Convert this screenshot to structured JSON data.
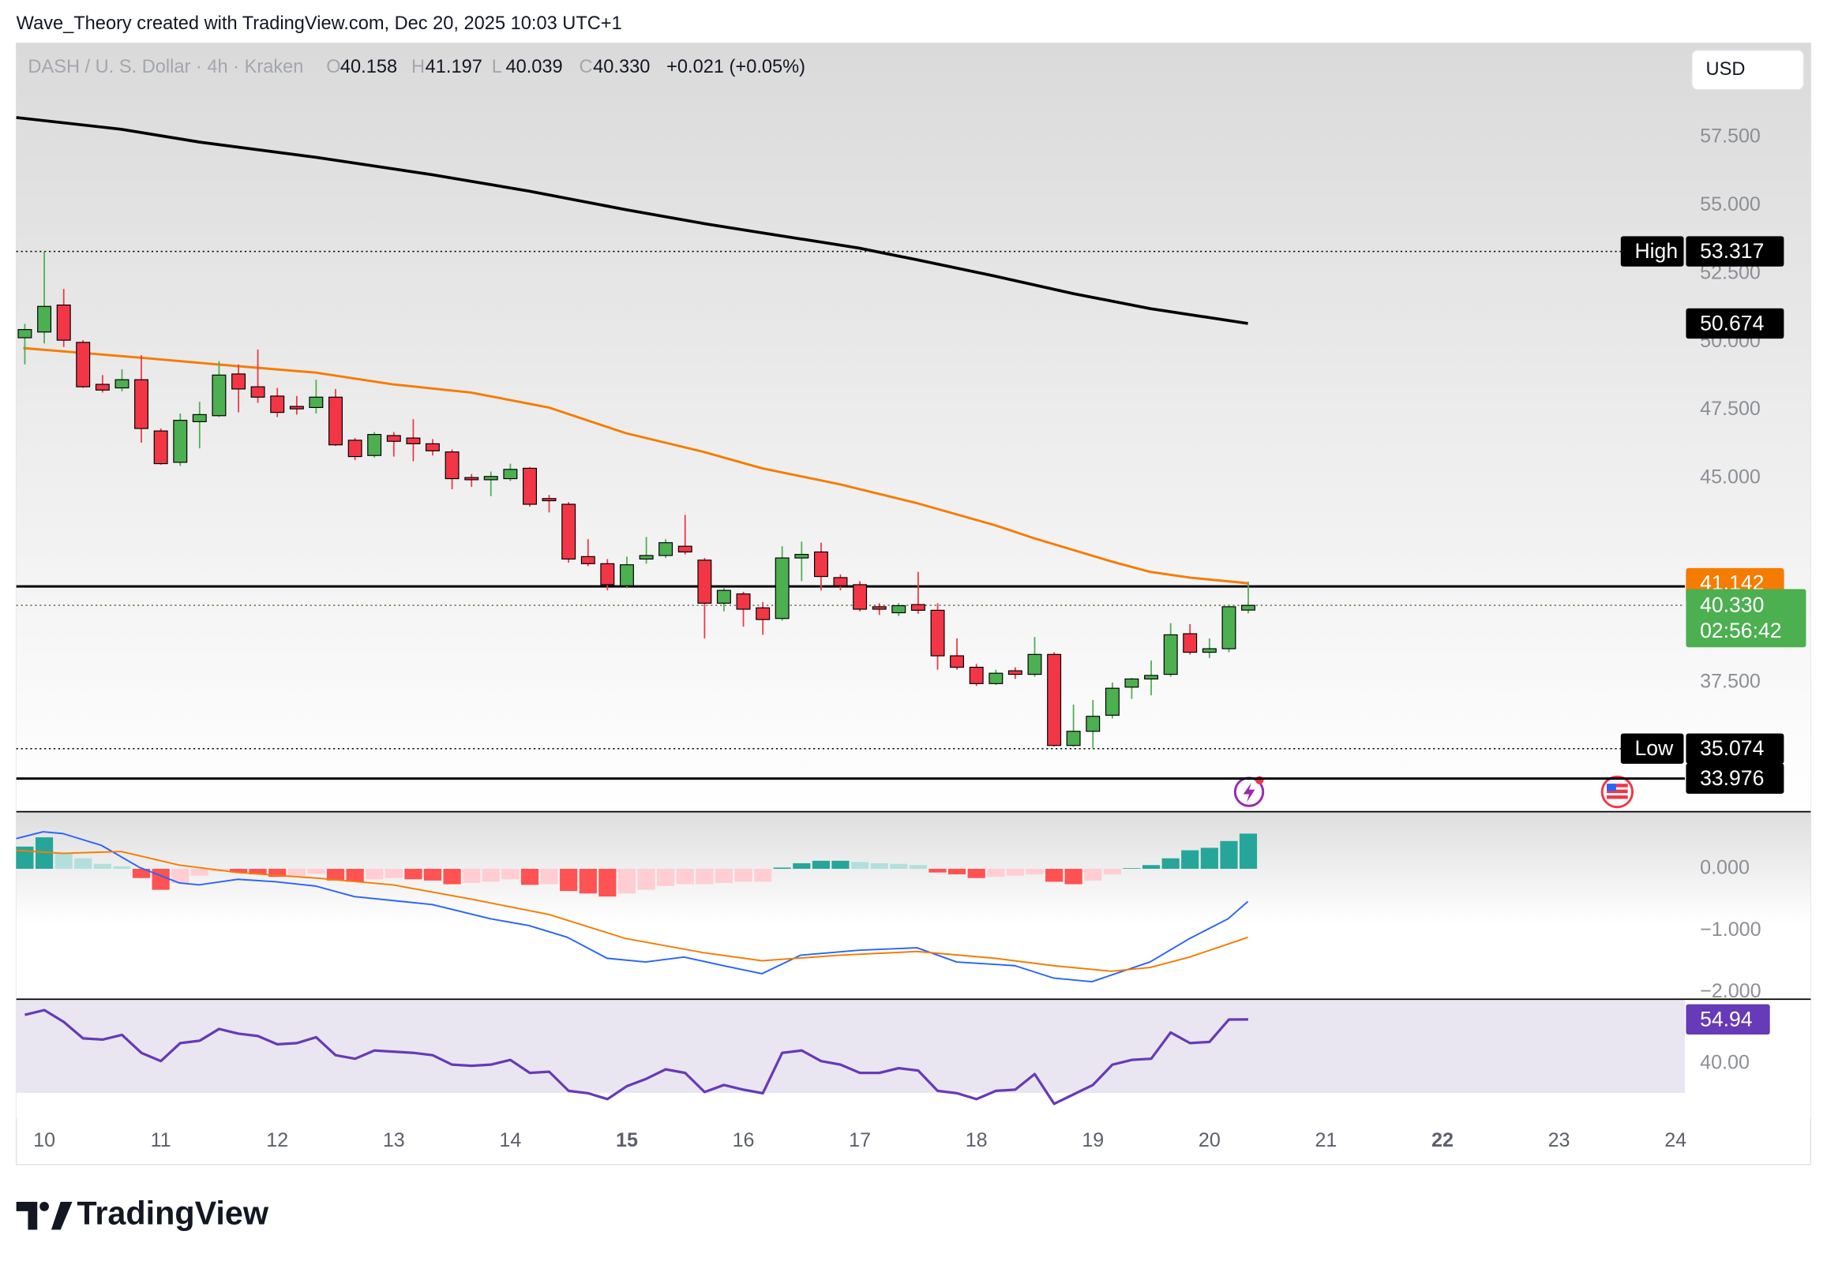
{
  "header": {
    "attribution": "Wave_Theory created with TradingView.com, Dec 20, 2025 10:03 UTC+1",
    "logo": "TradingView"
  },
  "chart_data": {
    "type": "candlestick",
    "title": "DASH / U. S. Dollar · 4h · Kraken",
    "currency": "USD",
    "ohlc": {
      "names": [
        "O",
        "H",
        "L",
        "C"
      ],
      "values": [
        40.158,
        41.197,
        40.039,
        40.33
      ],
      "value_labels": [
        "40.158",
        "41.197",
        "40.039",
        "40.330"
      ]
    },
    "change_label": "+0.021 (+0.05%)",
    "countdown": "02:56:42",
    "up_color": "#4caf50",
    "down_color": "#f23645",
    "border_color": "#000000",
    "x": [
      9.833,
      10,
      10.167,
      10.333,
      10.5,
      10.667,
      10.833,
      11,
      11.167,
      11.333,
      11.5,
      11.667,
      11.833,
      12,
      12.167,
      12.333,
      12.5,
      12.667,
      12.833,
      13,
      13.167,
      13.333,
      13.5,
      13.667,
      13.833,
      14,
      14.167,
      14.333,
      14.5,
      14.667,
      14.833,
      15,
      15.167,
      15.333,
      15.5,
      15.667,
      15.833,
      16,
      16.167,
      16.333,
      16.5,
      16.667,
      16.833,
      17,
      17.167,
      17.333,
      17.5,
      17.667,
      17.833,
      18,
      18.167,
      18.333,
      18.5,
      18.667,
      18.833,
      19,
      19.167,
      19.333,
      19.5,
      19.667,
      19.833,
      20,
      20.167,
      20.333
    ],
    "open": [
      50.15,
      50.36,
      51.35,
      49.98,
      48.44,
      48.31,
      48.61,
      46.73,
      45.58,
      47.07,
      47.29,
      48.82,
      48.35,
      48.01,
      47.63,
      47.59,
      47.97,
      46.39,
      45.83,
      46.56,
      46.47,
      46.26,
      45.96,
      45.02,
      44.94,
      44.98,
      45.36,
      44.25,
      44.04,
      42.12,
      41.86,
      41.05,
      42.03,
      42.16,
      42.5,
      41.99,
      40.41,
      40.75,
      40.24,
      39.85,
      42.07,
      42.29,
      41.35,
      41.09,
      40.28,
      40.06,
      40.36,
      40.15,
      38.48,
      38.06,
      37.46,
      37.93,
      37.8,
      38.53,
      35.19,
      35.71,
      36.3,
      37.33,
      37.63,
      37.8,
      39.29,
      38.61,
      38.74,
      40.158
    ],
    "high": [
      50.66,
      53.317,
      51.94,
      50.06,
      48.78,
      48.99,
      49.51,
      46.82,
      47.37,
      47.8,
      49.29,
      49.17,
      49.72,
      48.31,
      48.01,
      48.61,
      48.27,
      46.47,
      46.69,
      46.69,
      47.16,
      46.43,
      46.05,
      45.15,
      45.24,
      45.53,
      45.41,
      44.38,
      44.12,
      42.76,
      42.03,
      42.12,
      42.84,
      42.76,
      43.65,
      42.07,
      40.96,
      40.83,
      40.45,
      42.5,
      42.67,
      42.63,
      41.47,
      41.22,
      40.41,
      40.41,
      41.56,
      40.41,
      39.12,
      38.18,
      37.97,
      38.06,
      39.17,
      38.61,
      36.69,
      36.86,
      37.5,
      37.67,
      38.31,
      39.68,
      39.64,
      39.12,
      40.36,
      41.197
    ],
    "low": [
      49.17,
      49.94,
      49.81,
      48.31,
      48.14,
      48.18,
      46.3,
      45.49,
      45.45,
      46.09,
      47.24,
      47.41,
      47.76,
      47.24,
      47.33,
      47.37,
      46.18,
      45.66,
      45.75,
      45.79,
      45.62,
      45.83,
      44.59,
      44.68,
      44.34,
      44.89,
      43.95,
      43.74,
      41.9,
      41.77,
      40.88,
      40.96,
      41.86,
      42.07,
      42.2,
      39.12,
      40.11,
      39.55,
      39.25,
      39.77,
      41.22,
      40.88,
      40.88,
      40.11,
      39.98,
      39.94,
      40.02,
      37.97,
      37.97,
      37.37,
      37.41,
      37.63,
      37.71,
      35.15,
      35.15,
      35.074,
      36.18,
      36.9,
      37.03,
      37.71,
      38.53,
      38.4,
      38.61,
      40.039
    ],
    "close": [
      50.45,
      51.3,
      50.06,
      48.35,
      48.23,
      48.61,
      46.82,
      45.53,
      47.12,
      47.33,
      48.78,
      48.27,
      47.97,
      47.41,
      47.54,
      47.97,
      46.22,
      45.79,
      46.6,
      46.35,
      46.26,
      46.0,
      44.98,
      44.94,
      45.06,
      45.32,
      44.04,
      44.17,
      42.03,
      41.86,
      41.09,
      41.82,
      42.16,
      42.63,
      42.29,
      40.41,
      40.88,
      40.19,
      39.81,
      42.07,
      42.2,
      41.39,
      41.05,
      40.19,
      40.19,
      40.32,
      40.15,
      38.48,
      38.06,
      37.46,
      37.84,
      37.8,
      38.53,
      35.19,
      35.71,
      36.26,
      37.29,
      37.63,
      37.76,
      39.25,
      38.61,
      38.74,
      40.28,
      40.33
    ],
    "xlim": [
      9.76,
      24.08
    ],
    "xticks": [
      10,
      11,
      12,
      13,
      14,
      15,
      16,
      17,
      18,
      19,
      20,
      21,
      22,
      23,
      24
    ],
    "bold_xticks": [
      15,
      22
    ],
    "ylim": [
      32.76,
      60.96
    ],
    "yticks": [
      {
        "value": 57.5,
        "label": "57.500"
      },
      {
        "value": 55,
        "label": "55.000"
      },
      {
        "value": 52.5,
        "label": "52.500"
      },
      {
        "value": 50,
        "label": "50.000"
      },
      {
        "value": 47.5,
        "label": "47.500"
      },
      {
        "value": 45,
        "label": "45.000"
      },
      {
        "value": 37.5,
        "label": "37.500"
      }
    ],
    "grid": false,
    "series": [
      {
        "color": "#000000",
        "x": [
          9.76,
          10.66,
          11.33,
          12.33,
          13.33,
          14.16,
          14.99,
          15.66,
          16.16,
          16.99,
          17.49,
          18.16,
          18.83,
          19.49,
          20.33
        ],
        "values": [
          58.23,
          57.8,
          57.33,
          56.77,
          56.13,
          55.53,
          54.85,
          54.34,
          54.0,
          53.44,
          53.01,
          52.41,
          51.77,
          51.22,
          50.674
        ]
      },
      {
        "color": "#f57c00",
        "x": [
          9.82,
          10.82,
          11.49,
          12.33,
          12.99,
          13.66,
          14.33,
          14.99,
          15.66,
          16.16,
          16.83,
          17.49,
          18.16,
          18.49,
          19.16,
          19.49,
          19.83,
          20.33
        ],
        "values": [
          49.77,
          49.42,
          49.17,
          48.87,
          48.44,
          48.14,
          47.59,
          46.65,
          45.96,
          45.36,
          44.77,
          44.08,
          43.27,
          42.8,
          41.94,
          41.56,
          41.35,
          41.142
        ]
      }
    ],
    "levels": [
      {
        "label": "High",
        "value": 53.317,
        "style": "dotted"
      },
      {
        "value": 41.027,
        "style": "solid"
      },
      {
        "label": "Low",
        "value": 35.074,
        "style": "dotted"
      },
      {
        "value": 33.976,
        "style": "solid"
      }
    ],
    "macd": {
      "ylim": [
        -2.113,
        0.925
      ],
      "yticks": [
        {
          "value": 0,
          "label": "0.000"
        },
        {
          "value": -1,
          "label": "−1.000"
        },
        {
          "value": -2,
          "label": "−2.000"
        }
      ],
      "histogram": [
        0.36,
        0.51,
        0.25,
        0.17,
        0.08,
        0.04,
        -0.15,
        -0.34,
        -0.23,
        -0.11,
        -0.04,
        -0.06,
        -0.09,
        -0.13,
        -0.11,
        -0.08,
        -0.19,
        -0.21,
        -0.17,
        -0.15,
        -0.17,
        -0.19,
        -0.25,
        -0.23,
        -0.21,
        -0.17,
        -0.26,
        -0.25,
        -0.36,
        -0.4,
        -0.45,
        -0.4,
        -0.34,
        -0.28,
        -0.25,
        -0.25,
        -0.23,
        -0.21,
        -0.21,
        0.02,
        0.09,
        0.13,
        0.13,
        0.11,
        0.09,
        0.08,
        0.06,
        -0.06,
        -0.09,
        -0.15,
        -0.13,
        -0.11,
        -0.09,
        -0.21,
        -0.25,
        -0.19,
        -0.09,
        0.01,
        0.06,
        0.17,
        0.3,
        0.34,
        0.45,
        0.57
      ],
      "histogram_colors": [
        "#26a69a",
        "#b2dfdb",
        "#ffcdd2",
        "#ff5252"
      ],
      "macd_line": {
        "color": "#2962ff",
        "x": [
          9.76,
          9.99,
          10.16,
          10.49,
          10.82,
          11.16,
          11.33,
          11.66,
          11.99,
          12.33,
          12.66,
          13.33,
          13.83,
          14.16,
          14.49,
          14.83,
          15.16,
          15.49,
          15.83,
          16.16,
          16.49,
          16.99,
          17.49,
          17.83,
          18.33,
          18.66,
          18.99,
          19.49,
          19.83,
          20.16,
          20.33
        ],
        "values": [
          0.49,
          0.6,
          0.57,
          0.38,
          0.02,
          -0.23,
          -0.26,
          -0.17,
          -0.21,
          -0.28,
          -0.45,
          -0.58,
          -0.81,
          -0.92,
          -1.11,
          -1.45,
          -1.51,
          -1.43,
          -1.57,
          -1.7,
          -1.4,
          -1.32,
          -1.28,
          -1.51,
          -1.57,
          -1.77,
          -1.83,
          -1.51,
          -1.13,
          -0.81,
          -0.53
        ]
      },
      "signal_line": {
        "color": "#f57c00",
        "x": [
          9.76,
          10.16,
          10.66,
          11.16,
          11.66,
          12.33,
          12.99,
          13.66,
          14.33,
          14.99,
          15.66,
          16.16,
          16.83,
          17.49,
          18.16,
          18.66,
          19.16,
          19.49,
          19.83,
          20.33
        ],
        "values": [
          0.3,
          0.25,
          0.28,
          0.06,
          -0.06,
          -0.15,
          -0.26,
          -0.49,
          -0.74,
          -1.13,
          -1.36,
          -1.49,
          -1.4,
          -1.34,
          -1.45,
          -1.57,
          -1.66,
          -1.6,
          -1.43,
          -1.11
        ]
      }
    },
    "rsi": {
      "ylim": [
        21.5,
        61.8
      ],
      "yticks": [
        40
      ],
      "ytick_labels": [
        "40.00"
      ],
      "band": [
        30,
        70
      ],
      "color": "#673ab7",
      "values": [
        56.5,
        58.1,
        54.1,
        48.5,
        48.1,
        49.7,
        43.6,
        40.8,
        46.9,
        47.7,
        51.7,
        50.1,
        49.3,
        46.5,
        46.9,
        48.9,
        42.8,
        41.6,
        44.4,
        44.0,
        43.6,
        42.8,
        39.6,
        39.2,
        39.6,
        41.2,
        36.8,
        37.2,
        30.7,
        29.9,
        27.9,
        32.3,
        34.8,
        38.0,
        36.8,
        30.3,
        32.7,
        31.1,
        29.9,
        43.6,
        44.4,
        40.8,
        39.6,
        36.8,
        36.8,
        38.4,
        37.6,
        30.7,
        29.9,
        27.9,
        30.7,
        31.1,
        36.4,
        26.3,
        29.5,
        32.7,
        39.6,
        41.2,
        41.6,
        50.5,
        46.9,
        47.3,
        54.9,
        54.94
      ]
    }
  }
}
